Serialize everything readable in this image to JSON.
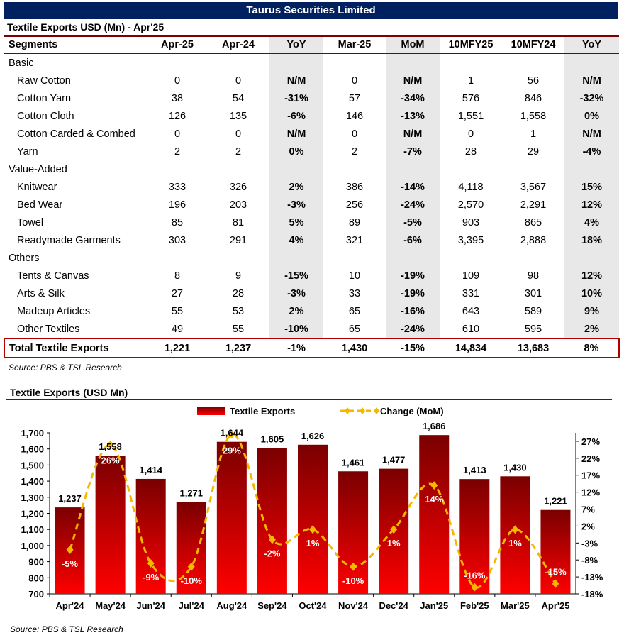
{
  "header": {
    "banner": "Taurus Securities Limited",
    "table_title": "Textile Exports USD (Mn) - Apr'25"
  },
  "table": {
    "columns": [
      "Segments",
      "Apr-25",
      "Apr-24",
      "YoY",
      "Mar-25",
      "MoM",
      "10MFY25",
      "10MFY24",
      "YoY"
    ],
    "sections": [
      {
        "name": "Basic",
        "rows": [
          [
            "Raw Cotton",
            "0",
            "0",
            "N/M",
            "0",
            "N/M",
            "1",
            "56",
            "N/M"
          ],
          [
            "Cotton Yarn",
            "38",
            "54",
            "-31%",
            "57",
            "-34%",
            "576",
            "846",
            "-32%"
          ],
          [
            "Cotton Cloth",
            "126",
            "135",
            "-6%",
            "146",
            "-13%",
            "1,551",
            "1,558",
            "0%"
          ],
          [
            "Cotton Carded & Combed",
            "0",
            "0",
            "N/M",
            "0",
            "N/M",
            "0",
            "1",
            "N/M"
          ],
          [
            "Yarn",
            "2",
            "2",
            "0%",
            "2",
            "-7%",
            "28",
            "29",
            "-4%"
          ]
        ]
      },
      {
        "name": "Value-Added",
        "rows": [
          [
            "Knitwear",
            "333",
            "326",
            "2%",
            "386",
            "-14%",
            "4,118",
            "3,567",
            "15%"
          ],
          [
            "Bed Wear",
            "196",
            "203",
            "-3%",
            "256",
            "-24%",
            "2,570",
            "2,291",
            "12%"
          ],
          [
            "Towel",
            "85",
            "81",
            "5%",
            "89",
            "-5%",
            "903",
            "865",
            "4%"
          ],
          [
            "Readymade Garments",
            "303",
            "291",
            "4%",
            "321",
            "-6%",
            "3,395",
            "2,888",
            "18%"
          ]
        ]
      },
      {
        "name": "Others",
        "rows": [
          [
            "Tents & Canvas",
            "8",
            "9",
            "-15%",
            "10",
            "-19%",
            "109",
            "98",
            "12%"
          ],
          [
            "Arts & Silk",
            "27",
            "28",
            "-3%",
            "33",
            "-19%",
            "331",
            "301",
            "10%"
          ],
          [
            "Madeup Articles",
            "55",
            "53",
            "2%",
            "65",
            "-16%",
            "643",
            "589",
            "9%"
          ],
          [
            "Other Textiles",
            "49",
            "55",
            "-10%",
            "65",
            "-24%",
            "610",
            "595",
            "2%"
          ]
        ]
      }
    ],
    "total": [
      "Total Textile Exports",
      "1,221",
      "1,237",
      "-1%",
      "1,430",
      "-15%",
      "14,834",
      "13,683",
      "8%"
    ],
    "source": "Source: PBS & TSL Research"
  },
  "chart_title": "Textile Exports (USD Mn)",
  "chart_source": "Source: PBS & TSL Research",
  "colors": {
    "banner": "#002060",
    "bar_top": "#7a0000",
    "bar_bottom": "#ff0000",
    "line": "#f5b800",
    "rule": "#8b0000",
    "shade": "#e8e8e8"
  },
  "chart_data": {
    "type": "bar",
    "title": "Textile Exports (USD Mn)",
    "categories": [
      "Apr'24",
      "May'24",
      "Jun'24",
      "Jul'24",
      "Aug'24",
      "Sep'24",
      "Oct'24",
      "Nov'24",
      "Dec'24",
      "Jan'25",
      "Feb'25",
      "Mar'25",
      "Apr'25"
    ],
    "series": [
      {
        "name": "Textile Exports",
        "type": "bar",
        "axis": "left",
        "values": [
          1237,
          1558,
          1414,
          1271,
          1644,
          1605,
          1626,
          1461,
          1477,
          1686,
          1413,
          1430,
          1221
        ],
        "labels": [
          "1,237",
          "1,558",
          "1,414",
          "1,271",
          "1,644",
          "1,605",
          "1,626",
          "1,461",
          "1,477",
          "1,686",
          "1,413",
          "1,430",
          "1,221"
        ]
      },
      {
        "name": "Change (MoM)",
        "type": "line",
        "axis": "right",
        "smooth": true,
        "dashed": true,
        "values": [
          -5,
          26,
          -9,
          -10,
          29,
          -2,
          1,
          -10,
          1,
          14,
          -16,
          1,
          -15
        ],
        "labels": [
          "-5%",
          "26%",
          "-9%",
          "-10%",
          "29%",
          "-2%",
          "1%",
          "-10%",
          "1%",
          "14%",
          "-16%",
          "1%",
          "-15%"
        ]
      }
    ],
    "ylim_left": [
      700,
      1700
    ],
    "yticks_left": [
      "700",
      "800",
      "900",
      "1,000",
      "1,100",
      "1,200",
      "1,300",
      "1,400",
      "1,500",
      "1,600",
      "1,700"
    ],
    "ylim_right": [
      -18,
      29.5
    ],
    "yticks_right_values": [
      -18,
      -13,
      -8,
      -3,
      2,
      7,
      12,
      17,
      22,
      27
    ],
    "yticks_right": [
      "-18%",
      "-13%",
      "-8%",
      "-3%",
      "2%",
      "7%",
      "12%",
      "17%",
      "22%",
      "27%"
    ],
    "legend": "top-center",
    "grid": false
  }
}
